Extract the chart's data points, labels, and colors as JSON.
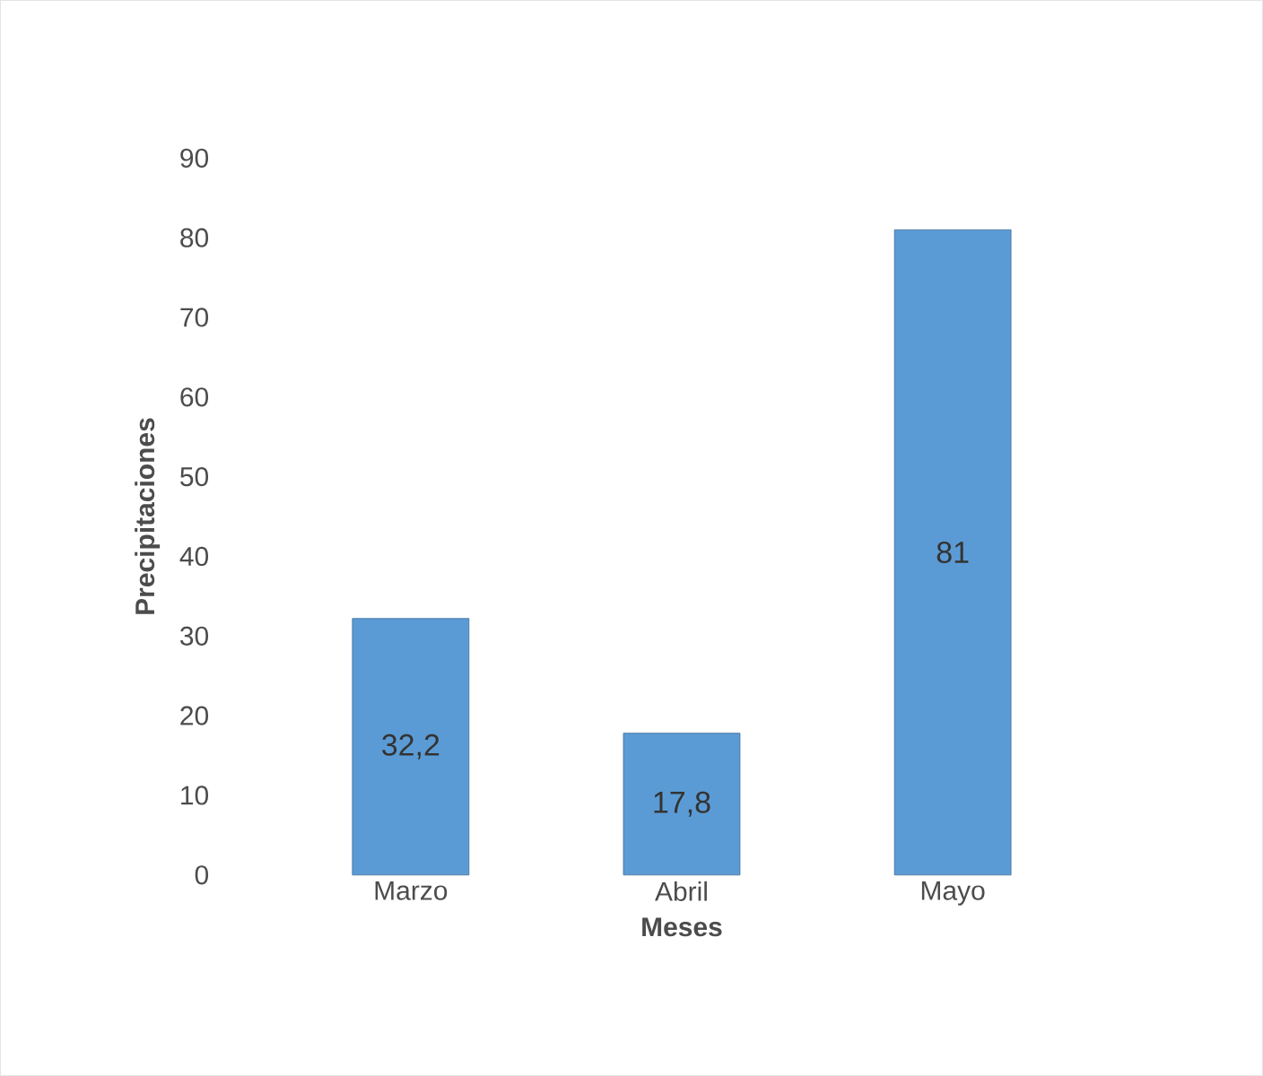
{
  "chart_data": {
    "type": "bar",
    "xlabel": "Meses",
    "ylabel": "Precipitaciones",
    "categories": [
      "Marzo",
      "Abril",
      "Mayo"
    ],
    "values": [
      32.2,
      17.8,
      81
    ],
    "value_labels": [
      "32,2",
      "17,8",
      "81"
    ],
    "color": "#5b9bd5",
    "ylim": [
      0,
      90
    ],
    "yticks": [
      0,
      10,
      20,
      30,
      40,
      50,
      60,
      70,
      80,
      90
    ],
    "grid": false
  }
}
